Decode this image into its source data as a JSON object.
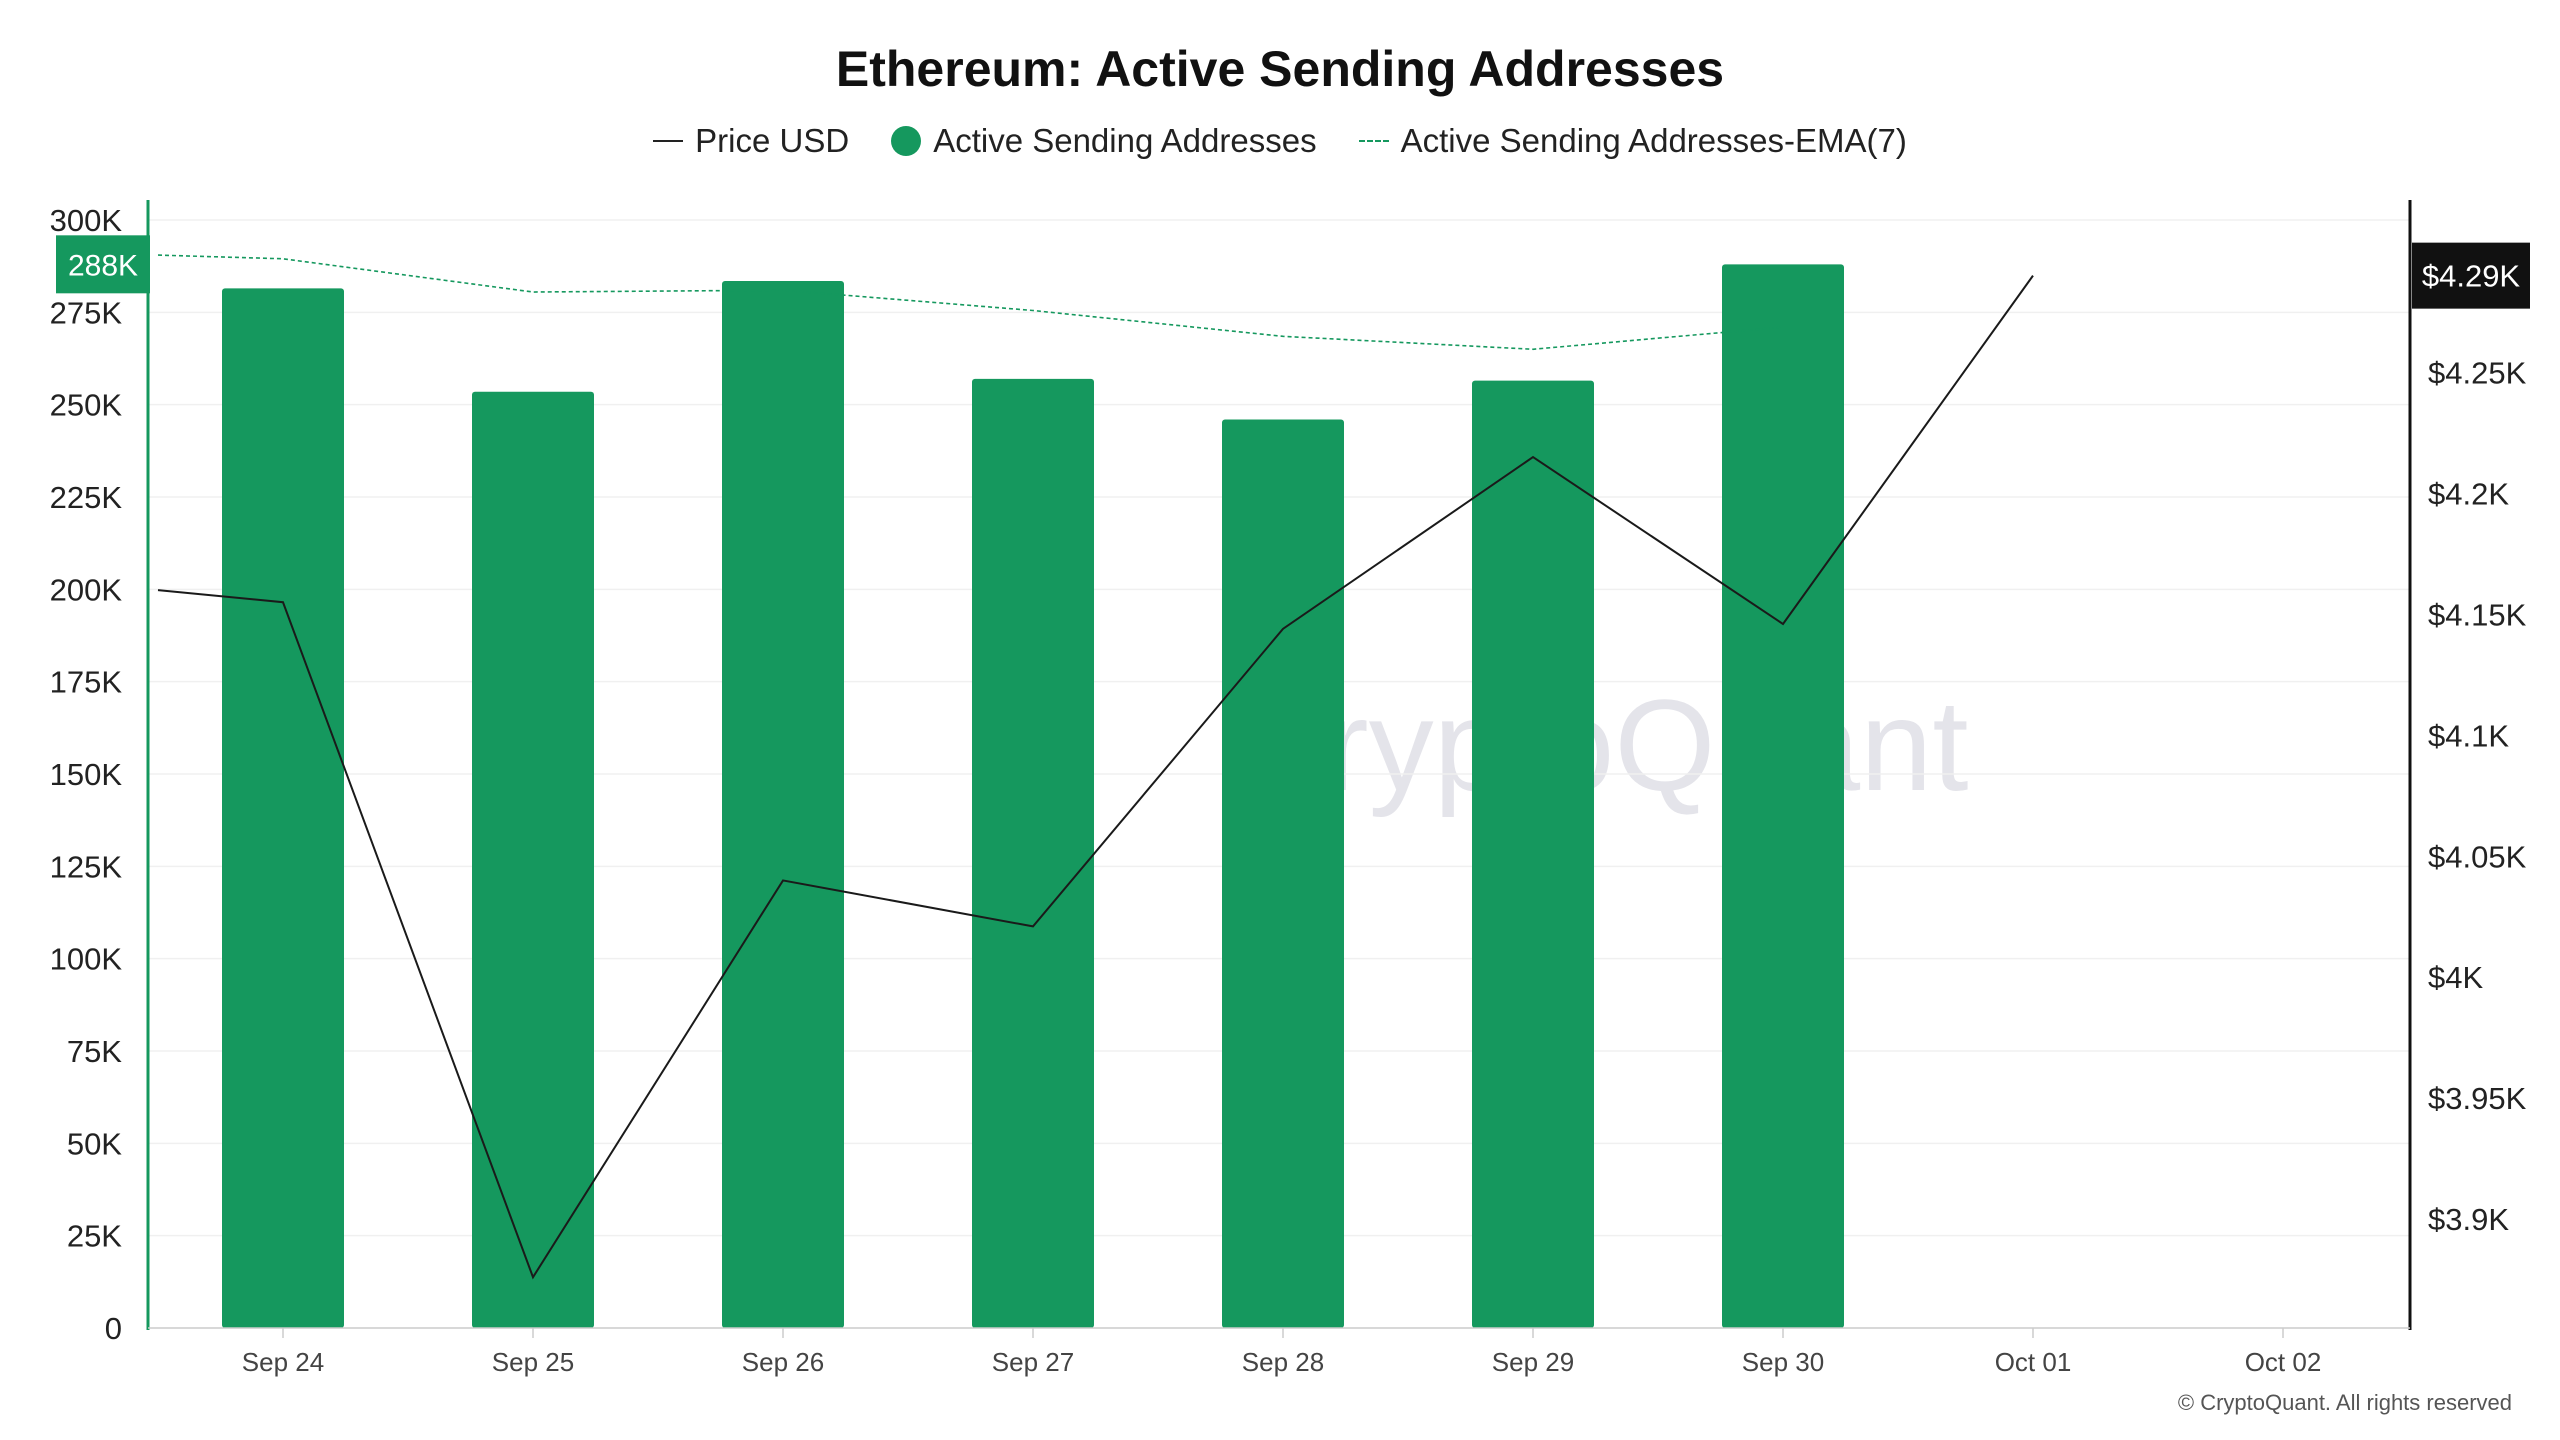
{
  "chart_data": {
    "type": "bar",
    "title": "Ethereum: Active Sending Addresses",
    "legend": {
      "placement": "top-center",
      "items": [
        {
          "name": "Price USD",
          "swatch": "line"
        },
        {
          "name": "Active Sending Addresses",
          "swatch": "dot"
        },
        {
          "name": "Active Sending Addresses-EMA(7)",
          "swatch": "dashed"
        }
      ]
    },
    "categories": [
      "Sep 24",
      "Sep 25",
      "Sep 26",
      "Sep 27",
      "Sep 28",
      "Sep 29",
      "Sep 30",
      "Oct 01",
      "Oct 02"
    ],
    "series": [
      {
        "name": "Active Sending Addresses",
        "type": "bar",
        "axis": "left",
        "color": "#15985e",
        "values": [
          281500,
          253500,
          283500,
          257000,
          246000,
          256500,
          288000,
          null,
          null
        ]
      },
      {
        "name": "Active Sending Addresses-EMA(7)",
        "type": "line-dashed",
        "axis": "left",
        "color": "#15985e",
        "x": [
          "Sep 23",
          "Sep 24",
          "Sep 25",
          "Sep 26",
          "Sep 27",
          "Sep 28",
          "Sep 29",
          "Sep 30"
        ],
        "values": [
          290500,
          289500,
          280500,
          281000,
          275500,
          268500,
          265000,
          271000
        ]
      },
      {
        "name": "Price USD",
        "type": "line",
        "axis": "right",
        "color": "#1a1a1a",
        "x": [
          "Sep 23",
          "Sep 24",
          "Sep 25",
          "Sep 26",
          "Sep 27",
          "Sep 28",
          "Sep 29",
          "Sep 30",
          "Oct 01"
        ],
        "values": [
          4160,
          4155,
          3876,
          4040,
          4021,
          4144,
          4215,
          4146,
          4290
        ]
      }
    ],
    "y_left": {
      "ylim": [
        0,
        300000
      ],
      "ticks": [
        {
          "value": 0,
          "label": "0"
        },
        {
          "value": 25000,
          "label": "25K"
        },
        {
          "value": 50000,
          "label": "50K"
        },
        {
          "value": 75000,
          "label": "75K"
        },
        {
          "value": 100000,
          "label": "100K"
        },
        {
          "value": 125000,
          "label": "125K"
        },
        {
          "value": 150000,
          "label": "150K"
        },
        {
          "value": 175000,
          "label": "175K"
        },
        {
          "value": 200000,
          "label": "200K"
        },
        {
          "value": 225000,
          "label": "225K"
        },
        {
          "value": 250000,
          "label": "250K"
        },
        {
          "value": 275000,
          "label": "275K"
        },
        {
          "value": 300000,
          "label": "300K"
        }
      ],
      "badge": {
        "value": 288000,
        "label": "288K",
        "color": "#15985e"
      }
    },
    "y_right": {
      "ylim": [
        3855,
        4313
      ],
      "ticks": [
        {
          "value": 3900,
          "label": "$3.9K"
        },
        {
          "value": 3950,
          "label": "$3.95K"
        },
        {
          "value": 4000,
          "label": "$4K"
        },
        {
          "value": 4050,
          "label": "$4.05K"
        },
        {
          "value": 4100,
          "label": "$4.1K"
        },
        {
          "value": 4150,
          "label": "$4.15K"
        },
        {
          "value": 4200,
          "label": "$4.2K"
        },
        {
          "value": 4250,
          "label": "$4.25K"
        }
      ],
      "badge": {
        "value": 4290,
        "label": "$4.29K",
        "color": "#111111"
      }
    },
    "grid": true
  },
  "footer": {
    "copyright": "© CryptoQuant. All rights reserved"
  }
}
